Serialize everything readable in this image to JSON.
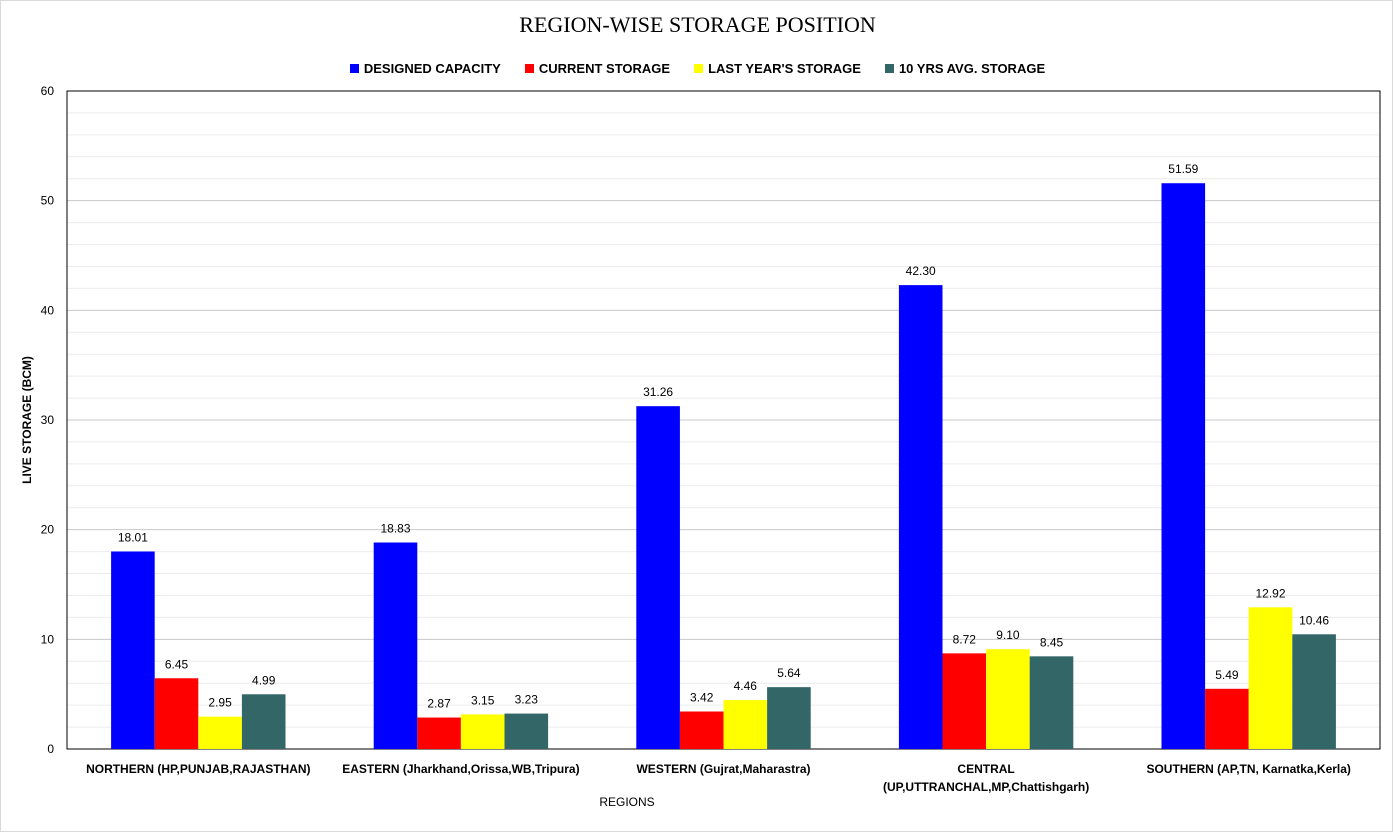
{
  "chart_data": {
    "type": "bar",
    "title": "REGION-WISE STORAGE POSITION",
    "xlabel": "REGIONS",
    "ylabel": "LIVE STORAGE (BCM)",
    "ylim": [
      0,
      60
    ],
    "yticks": [
      0,
      10,
      20,
      30,
      40,
      50,
      60
    ],
    "grid": true,
    "legend_position": "top",
    "categories": [
      [
        "NORTHERN (HP,PUNJAB,RAJASTHAN)"
      ],
      [
        "EASTERN (Jharkhand,Orissa,WB,Tripura)"
      ],
      [
        "WESTERN (Gujrat,Maharastra)"
      ],
      [
        "CENTRAL",
        "(UP,UTTRANCHAL,MP,Chattishgarh)"
      ],
      [
        "SOUTHERN (AP,TN, Karnatka,Kerla)"
      ]
    ],
    "series": [
      {
        "name": "DESIGNED CAPACITY",
        "color": "#0000ff",
        "values": [
          18.01,
          18.83,
          31.26,
          42.3,
          51.59
        ],
        "labels": [
          "18.01",
          "18.83",
          "31.26",
          "42.30",
          "51.59"
        ]
      },
      {
        "name": "CURRENT STORAGE",
        "color": "#ff0000",
        "values": [
          6.45,
          2.87,
          3.42,
          8.72,
          5.49
        ],
        "labels": [
          "6.45",
          "2.87",
          "3.42",
          "8.72",
          "5.49"
        ]
      },
      {
        "name": "LAST YEAR'S STORAGE",
        "color": "#ffff00",
        "values": [
          2.95,
          3.15,
          4.46,
          9.1,
          12.92
        ],
        "labels": [
          "2.95",
          "3.15",
          "4.46",
          "9.10",
          "12.92"
        ]
      },
      {
        "name": "10 YRS AVG. STORAGE",
        "color": "#336666",
        "values": [
          4.99,
          3.23,
          5.64,
          8.45,
          10.46
        ],
        "labels": [
          "4.99",
          "3.23",
          "5.64",
          "8.45",
          "10.46"
        ]
      }
    ]
  }
}
